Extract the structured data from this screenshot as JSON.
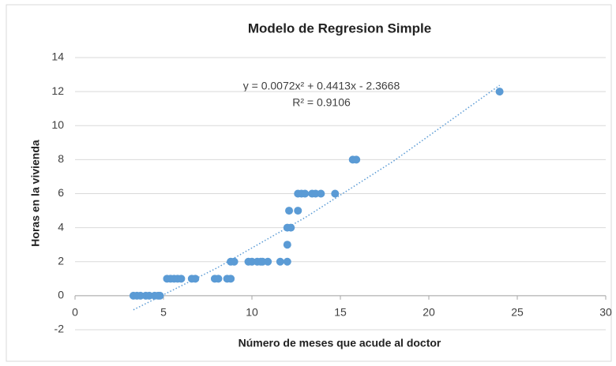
{
  "chart_data": {
    "type": "scatter",
    "title": "Modelo de Regresion Simple",
    "x_label": "Número de meses que acude al doctor",
    "y_label": "Horas en la vivienda",
    "annotations": [
      "y = 0.0072x² + 0.4413x - 2.3668",
      "R² = 0.9106"
    ],
    "color": "#5b9bd5",
    "x": [
      3.3,
      3.5,
      3.7,
      4.0,
      4.2,
      4.5,
      4.7,
      4.8,
      5.2,
      5.4,
      5.6,
      5.8,
      6.0,
      6.6,
      6.8,
      7.9,
      8.1,
      8.6,
      8.8,
      8.8,
      9.0,
      9.8,
      10.0,
      10.3,
      10.5,
      10.6,
      10.9,
      11.6,
      12.0,
      12.0,
      12.0,
      12.2,
      12.1,
      12.6,
      12.6,
      12.8,
      13.0,
      13.4,
      13.6,
      13.9,
      14.7,
      15.7,
      15.9,
      24.0
    ],
    "values": [
      0,
      0,
      0,
      0,
      0,
      0,
      0,
      0,
      1,
      1,
      1,
      1,
      1,
      1,
      1,
      1,
      1,
      1,
      1,
      2,
      2,
      2,
      2,
      2,
      2,
      2,
      2,
      2,
      2,
      3,
      4,
      4,
      5,
      5,
      6,
      6,
      6,
      6,
      6,
      6,
      6,
      8,
      8,
      12
    ],
    "trendline": {
      "x": [
        3.3,
        8,
        13,
        18,
        24
      ],
      "values": [
        -0.83,
        1.62,
        4.59,
        7.91,
        12.37
      ],
      "color": "#5b9bd5"
    },
    "xlim": [
      0,
      30
    ],
    "xticks": [
      0,
      5,
      10,
      15,
      20,
      25,
      30
    ],
    "ylim": [
      -2,
      14
    ],
    "yticks": [
      -2,
      0,
      2,
      4,
      6,
      8,
      10,
      12,
      14
    ],
    "grid": true
  }
}
